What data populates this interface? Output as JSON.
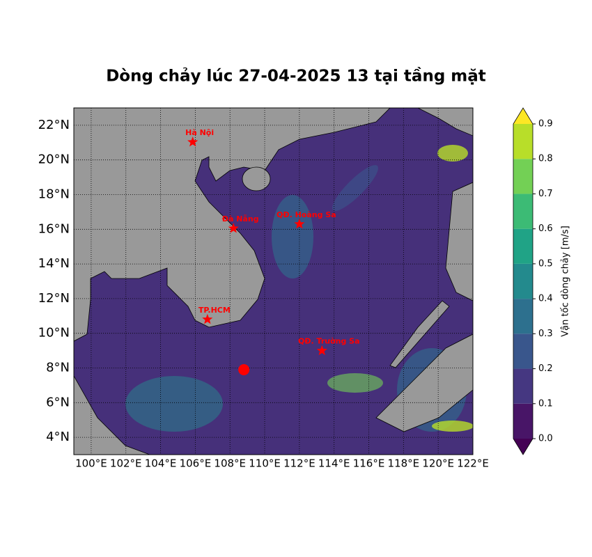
{
  "chart_data": {
    "type": "map",
    "title": "Dòng chảy lúc 27-04-2025 13 tại tầng mặt",
    "xlim": [
      99,
      122
    ],
    "ylim": [
      3,
      23
    ],
    "xticks": [
      {
        "value": 100,
        "label": "100°E"
      },
      {
        "value": 102,
        "label": "102°E"
      },
      {
        "value": 104,
        "label": "104°E"
      },
      {
        "value": 106,
        "label": "106°E"
      },
      {
        "value": 108,
        "label": "108°E"
      },
      {
        "value": 110,
        "label": "110°E"
      },
      {
        "value": 112,
        "label": "112°E"
      },
      {
        "value": 114,
        "label": "114°E"
      },
      {
        "value": 116,
        "label": "116°E"
      },
      {
        "value": 118,
        "label": "118°E"
      },
      {
        "value": 120,
        "label": "120°E"
      },
      {
        "value": 122,
        "label": "122°E"
      }
    ],
    "yticks": [
      {
        "value": 4,
        "label": "4°N"
      },
      {
        "value": 6,
        "label": "6°N"
      },
      {
        "value": 8,
        "label": "8°N"
      },
      {
        "value": 10,
        "label": "10°N"
      },
      {
        "value": 12,
        "label": "12°N"
      },
      {
        "value": 14,
        "label": "14°N"
      },
      {
        "value": 16,
        "label": "16°N"
      },
      {
        "value": 18,
        "label": "18°N"
      },
      {
        "value": 20,
        "label": "20°N"
      },
      {
        "value": 22,
        "label": "22°N"
      }
    ],
    "grid": true,
    "places": [
      {
        "name": "Hà Nội",
        "lon": 105.85,
        "lat": 21.03
      },
      {
        "name": "Đà Nẵng",
        "lon": 108.2,
        "lat": 16.05
      },
      {
        "name": "QĐ. Hoàng Sa",
        "lon": 112.0,
        "lat": 16.3
      },
      {
        "name": "TP.HCM",
        "lon": 106.7,
        "lat": 10.8
      },
      {
        "name": "QĐ. Trường Sa",
        "lon": 113.3,
        "lat": 9.0
      }
    ],
    "marker": {
      "lon": 108.8,
      "lat": 7.9,
      "color": "#ff0000"
    },
    "place_color": "#ff0000",
    "colorbar": {
      "label": "Vận tốc dòng chảy [m/s]",
      "lim": [
        0,
        0.9
      ],
      "ticks": [
        {
          "value": 0,
          "label": "0.0"
        },
        0.1,
        0.2,
        0.3,
        0.4,
        0.5,
        0.6,
        0.7,
        0.8,
        0.9
      ],
      "colors": [
        "#481567",
        "#453781",
        "#39568c",
        "#2d708e",
        "#238a8d",
        "#20a386",
        "#3cbb75",
        "#73d055",
        "#b8de29",
        "#dde318"
      ],
      "extend_colors": [
        "#440154",
        "#fde725"
      ]
    }
  }
}
